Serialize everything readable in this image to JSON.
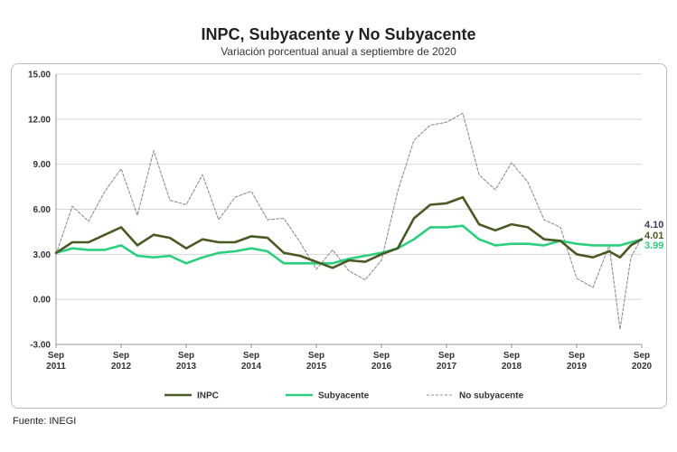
{
  "chart_data": {
    "type": "line",
    "title": "INPC, Subyacente y No Subyacente",
    "subtitle": "Variación porcentual anual a septiembre de 2020",
    "source": "Fuente: INEGI",
    "ylim": [
      -3,
      15
    ],
    "yticks": [
      "15.00",
      "12.00",
      "9.00",
      "6.00",
      "3.00",
      "0.00",
      "-3.00"
    ],
    "x_tick_labels": [
      [
        "Sep",
        "2011"
      ],
      [
        "Sep",
        "2012"
      ],
      [
        "Sep",
        "2013"
      ],
      [
        "Sep",
        "2014"
      ],
      [
        "Sep",
        "2015"
      ],
      [
        "Sep",
        "2016"
      ],
      [
        "Sep",
        "2017"
      ],
      [
        "Sep",
        "2018"
      ],
      [
        "Sep",
        "2019"
      ],
      [
        "Sep",
        "2020"
      ]
    ],
    "x_range": [
      "2011-09",
      "2020-09"
    ],
    "grid": "horizontal",
    "legend_position": "bottom",
    "end_labels": [
      "4.10",
      "4.01",
      "3.99"
    ],
    "series": [
      {
        "name": "INPC",
        "color": "#4a5a25",
        "style": "solid",
        "points": [
          [
            "2011-09",
            3.1
          ],
          [
            "2011-12",
            3.8
          ],
          [
            "2012-03",
            3.8
          ],
          [
            "2012-06",
            4.3
          ],
          [
            "2012-09",
            4.8
          ],
          [
            "2012-12",
            3.6
          ],
          [
            "2013-03",
            4.3
          ],
          [
            "2013-06",
            4.1
          ],
          [
            "2013-09",
            3.4
          ],
          [
            "2013-12",
            4.0
          ],
          [
            "2014-03",
            3.8
          ],
          [
            "2014-06",
            3.8
          ],
          [
            "2014-09",
            4.2
          ],
          [
            "2014-12",
            4.1
          ],
          [
            "2015-03",
            3.1
          ],
          [
            "2015-06",
            2.9
          ],
          [
            "2015-09",
            2.5
          ],
          [
            "2015-12",
            2.1
          ],
          [
            "2016-03",
            2.6
          ],
          [
            "2016-06",
            2.5
          ],
          [
            "2016-09",
            3.0
          ],
          [
            "2016-12",
            3.4
          ],
          [
            "2017-03",
            5.4
          ],
          [
            "2017-06",
            6.3
          ],
          [
            "2017-09",
            6.4
          ],
          [
            "2017-12",
            6.8
          ],
          [
            "2018-03",
            5.0
          ],
          [
            "2018-06",
            4.6
          ],
          [
            "2018-09",
            5.0
          ],
          [
            "2018-12",
            4.8
          ],
          [
            "2019-03",
            4.0
          ],
          [
            "2019-06",
            3.9
          ],
          [
            "2019-09",
            3.0
          ],
          [
            "2019-12",
            2.8
          ],
          [
            "2020-03",
            3.2
          ],
          [
            "2020-05",
            2.8
          ],
          [
            "2020-07",
            3.6
          ],
          [
            "2020-09",
            4.01
          ]
        ]
      },
      {
        "name": "Subyacente",
        "color": "#2ccf7e",
        "style": "solid",
        "points": [
          [
            "2011-09",
            3.1
          ],
          [
            "2011-12",
            3.4
          ],
          [
            "2012-03",
            3.3
          ],
          [
            "2012-06",
            3.3
          ],
          [
            "2012-09",
            3.6
          ],
          [
            "2012-12",
            2.9
          ],
          [
            "2013-03",
            2.8
          ],
          [
            "2013-06",
            2.9
          ],
          [
            "2013-09",
            2.4
          ],
          [
            "2013-12",
            2.8
          ],
          [
            "2014-03",
            3.1
          ],
          [
            "2014-06",
            3.2
          ],
          [
            "2014-09",
            3.4
          ],
          [
            "2014-12",
            3.2
          ],
          [
            "2015-03",
            2.4
          ],
          [
            "2015-06",
            2.4
          ],
          [
            "2015-09",
            2.4
          ],
          [
            "2015-12",
            2.4
          ],
          [
            "2016-03",
            2.7
          ],
          [
            "2016-06",
            2.9
          ],
          [
            "2016-09",
            3.1
          ],
          [
            "2016-12",
            3.4
          ],
          [
            "2017-03",
            4.0
          ],
          [
            "2017-06",
            4.8
          ],
          [
            "2017-09",
            4.8
          ],
          [
            "2017-12",
            4.9
          ],
          [
            "2018-03",
            4.0
          ],
          [
            "2018-06",
            3.6
          ],
          [
            "2018-09",
            3.7
          ],
          [
            "2018-12",
            3.7
          ],
          [
            "2019-03",
            3.6
          ],
          [
            "2019-06",
            3.9
          ],
          [
            "2019-09",
            3.7
          ],
          [
            "2019-12",
            3.6
          ],
          [
            "2020-03",
            3.6
          ],
          [
            "2020-05",
            3.6
          ],
          [
            "2020-07",
            3.8
          ],
          [
            "2020-09",
            3.99
          ]
        ]
      },
      {
        "name": "No subyacente",
        "color": "#8f8f8f",
        "style": "dashed",
        "points": [
          [
            "2011-09",
            3.0
          ],
          [
            "2011-12",
            6.2
          ],
          [
            "2012-03",
            5.2
          ],
          [
            "2012-06",
            7.2
          ],
          [
            "2012-09",
            8.7
          ],
          [
            "2012-12",
            5.6
          ],
          [
            "2013-03",
            9.9
          ],
          [
            "2013-06",
            6.6
          ],
          [
            "2013-09",
            6.3
          ],
          [
            "2013-12",
            8.3
          ],
          [
            "2014-03",
            5.3
          ],
          [
            "2014-06",
            6.8
          ],
          [
            "2014-09",
            7.2
          ],
          [
            "2014-12",
            5.3
          ],
          [
            "2015-03",
            5.4
          ],
          [
            "2015-06",
            3.8
          ],
          [
            "2015-09",
            2.0
          ],
          [
            "2015-12",
            3.3
          ],
          [
            "2016-03",
            1.9
          ],
          [
            "2016-06",
            1.3
          ],
          [
            "2016-09",
            2.6
          ],
          [
            "2016-12",
            7.2
          ],
          [
            "2017-03",
            10.6
          ],
          [
            "2017-06",
            11.6
          ],
          [
            "2017-09",
            11.8
          ],
          [
            "2017-12",
            12.4
          ],
          [
            "2018-03",
            8.3
          ],
          [
            "2018-06",
            7.3
          ],
          [
            "2018-09",
            9.1
          ],
          [
            "2018-12",
            7.8
          ],
          [
            "2019-03",
            5.3
          ],
          [
            "2019-06",
            4.8
          ],
          [
            "2019-09",
            1.4
          ],
          [
            "2019-12",
            0.8
          ],
          [
            "2020-03",
            3.6
          ],
          [
            "2020-05",
            -2.0
          ],
          [
            "2020-07",
            2.8
          ],
          [
            "2020-09",
            4.1
          ]
        ]
      }
    ]
  }
}
